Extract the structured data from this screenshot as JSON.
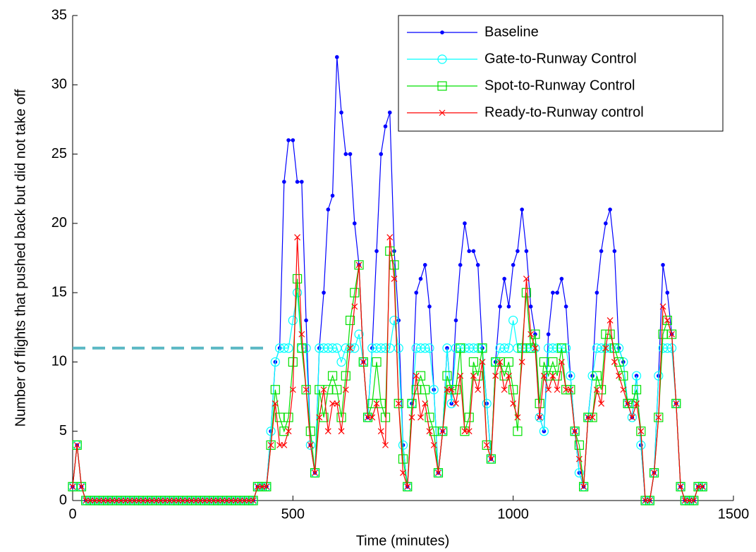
{
  "chart_data": {
    "type": "line",
    "xlabel": "Time (minutes)",
    "ylabel": "Number of flights that pushed back but did not take off",
    "x": [
      0,
      10,
      20,
      30,
      40,
      50,
      60,
      70,
      80,
      90,
      100,
      110,
      120,
      130,
      140,
      150,
      160,
      170,
      180,
      190,
      200,
      210,
      220,
      230,
      240,
      250,
      260,
      270,
      280,
      290,
      300,
      310,
      320,
      330,
      340,
      350,
      360,
      370,
      380,
      390,
      400,
      410,
      420,
      430,
      440,
      450,
      460,
      470,
      480,
      490,
      500,
      510,
      520,
      530,
      540,
      550,
      560,
      570,
      580,
      590,
      600,
      610,
      620,
      630,
      640,
      650,
      660,
      670,
      680,
      690,
      700,
      710,
      720,
      730,
      740,
      750,
      760,
      770,
      780,
      790,
      800,
      810,
      820,
      830,
      840,
      850,
      860,
      870,
      880,
      890,
      900,
      910,
      920,
      930,
      940,
      950,
      960,
      970,
      980,
      990,
      1000,
      1010,
      1020,
      1030,
      1040,
      1050,
      1060,
      1070,
      1080,
      1090,
      1100,
      1110,
      1120,
      1130,
      1140,
      1150,
      1160,
      1170,
      1180,
      1190,
      1200,
      1210,
      1220,
      1230,
      1240,
      1250,
      1260,
      1270,
      1280,
      1290,
      1300,
      1310,
      1320,
      1330,
      1340,
      1350,
      1360,
      1370,
      1380,
      1390,
      1400,
      1410,
      1420,
      1430
    ],
    "series": [
      {
        "name": "Baseline",
        "color": "#0000ff",
        "marker": "dot",
        "values": [
          1,
          4,
          1,
          0,
          0,
          0,
          0,
          0,
          0,
          0,
          0,
          0,
          0,
          0,
          0,
          0,
          0,
          0,
          0,
          0,
          0,
          0,
          0,
          0,
          0,
          0,
          0,
          0,
          0,
          0,
          0,
          0,
          0,
          0,
          0,
          0,
          0,
          0,
          0,
          0,
          0,
          0,
          1,
          1,
          1,
          5,
          10,
          11,
          23,
          26,
          26,
          23,
          23,
          13,
          4,
          2,
          11,
          15,
          21,
          22,
          32,
          28,
          25,
          25,
          20,
          17,
          10,
          6,
          11,
          18,
          25,
          27,
          28,
          18,
          13,
          4,
          1,
          7,
          15,
          16,
          17,
          14,
          8,
          2,
          5,
          11,
          7,
          13,
          17,
          20,
          18,
          18,
          17,
          11,
          7,
          3,
          10,
          14,
          16,
          14,
          17,
          18,
          21,
          18,
          14,
          12,
          6,
          5,
          12,
          15,
          15,
          16,
          14,
          9,
          5,
          2,
          1,
          6,
          9,
          15,
          18,
          20,
          21,
          18,
          11,
          10,
          7,
          6,
          9,
          4,
          0,
          0,
          2,
          9,
          17,
          15,
          12,
          7,
          1,
          0,
          0,
          0,
          1,
          1
        ]
      },
      {
        "name": "Gate-to-Runway Control",
        "color": "#00ffff",
        "marker": "circle",
        "values": [
          1,
          4,
          1,
          0,
          0,
          0,
          0,
          0,
          0,
          0,
          0,
          0,
          0,
          0,
          0,
          0,
          0,
          0,
          0,
          0,
          0,
          0,
          0,
          0,
          0,
          0,
          0,
          0,
          0,
          0,
          0,
          0,
          0,
          0,
          0,
          0,
          0,
          0,
          0,
          0,
          0,
          0,
          1,
          1,
          1,
          5,
          10,
          11,
          11,
          11,
          13,
          15,
          11,
          11,
          4,
          2,
          11,
          11,
          11,
          11,
          11,
          10,
          11,
          11,
          11,
          12,
          10,
          6,
          11,
          11,
          11,
          11,
          11,
          13,
          11,
          4,
          1,
          7,
          11,
          11,
          11,
          11,
          8,
          2,
          5,
          11,
          7,
          11,
          11,
          11,
          11,
          11,
          11,
          11,
          7,
          3,
          10,
          11,
          11,
          11,
          13,
          11,
          11,
          11,
          11,
          11,
          6,
          5,
          11,
          11,
          11,
          11,
          11,
          9,
          5,
          2,
          1,
          6,
          9,
          11,
          11,
          11,
          11,
          11,
          11,
          10,
          7,
          6,
          9,
          4,
          0,
          0,
          2,
          9,
          11,
          11,
          11,
          7,
          1,
          0,
          0,
          0,
          1,
          1
        ]
      },
      {
        "name": "Spot-to-Runway Control",
        "color": "#00e000",
        "marker": "square",
        "values": [
          1,
          4,
          1,
          0,
          0,
          0,
          0,
          0,
          0,
          0,
          0,
          0,
          0,
          0,
          0,
          0,
          0,
          0,
          0,
          0,
          0,
          0,
          0,
          0,
          0,
          0,
          0,
          0,
          0,
          0,
          0,
          0,
          0,
          0,
          0,
          0,
          0,
          0,
          0,
          0,
          0,
          0,
          1,
          1,
          1,
          4,
          8,
          6,
          5,
          6,
          10,
          16,
          11,
          8,
          5,
          2,
          8,
          6,
          8,
          9,
          8,
          6,
          9,
          13,
          15,
          17,
          10,
          6,
          7,
          10,
          7,
          6,
          18,
          17,
          7,
          3,
          1,
          7,
          8,
          9,
          8,
          6,
          5,
          2,
          5,
          9,
          8,
          8,
          11,
          5,
          6,
          10,
          9,
          11,
          4,
          3,
          10,
          10,
          9,
          10,
          8,
          5,
          11,
          15,
          11,
          12,
          7,
          10,
          9,
          10,
          9,
          11,
          8,
          8,
          5,
          4,
          1,
          6,
          6,
          9,
          8,
          12,
          12,
          11,
          10,
          9,
          7,
          7,
          8,
          5,
          0,
          0,
          2,
          6,
          12,
          13,
          12,
          7,
          1,
          0,
          0,
          0,
          1,
          1
        ]
      },
      {
        "name": "Ready-to-Runway control",
        "color": "#ff0000",
        "marker": "x",
        "values": [
          1,
          4,
          1,
          0,
          0,
          0,
          0,
          0,
          0,
          0,
          0,
          0,
          0,
          0,
          0,
          0,
          0,
          0,
          0,
          0,
          0,
          0,
          0,
          0,
          0,
          0,
          0,
          0,
          0,
          0,
          0,
          0,
          0,
          0,
          0,
          0,
          0,
          0,
          0,
          0,
          0,
          0,
          1,
          1,
          1,
          4,
          7,
          4,
          4,
          5,
          8,
          19,
          12,
          8,
          4,
          2,
          6,
          8,
          5,
          7,
          7,
          5,
          8,
          11,
          14,
          17,
          10,
          6,
          6,
          7,
          5,
          4,
          19,
          16,
          7,
          2,
          1,
          6,
          9,
          6,
          7,
          5,
          4,
          2,
          5,
          8,
          8,
          7,
          9,
          5,
          5,
          9,
          8,
          10,
          4,
          3,
          9,
          10,
          8,
          9,
          7,
          6,
          10,
          16,
          12,
          11,
          6,
          9,
          8,
          9,
          8,
          10,
          8,
          8,
          5,
          3,
          1,
          6,
          6,
          8,
          7,
          11,
          13,
          10,
          9,
          8,
          7,
          6,
          7,
          5,
          0,
          0,
          2,
          6,
          14,
          13,
          12,
          7,
          1,
          0,
          0,
          0,
          1,
          1
        ]
      }
    ],
    "reference_line": {
      "y": 11,
      "x": [
        0,
        440
      ],
      "color": "#5bb8c4"
    },
    "xlim": [
      0,
      1500
    ],
    "xticks": [
      0,
      500,
      1000,
      1500
    ],
    "ylim": [
      0,
      35
    ],
    "yticks": [
      0,
      5,
      10,
      15,
      20,
      25,
      30,
      35
    ],
    "grid": false,
    "legend": "top-right"
  }
}
